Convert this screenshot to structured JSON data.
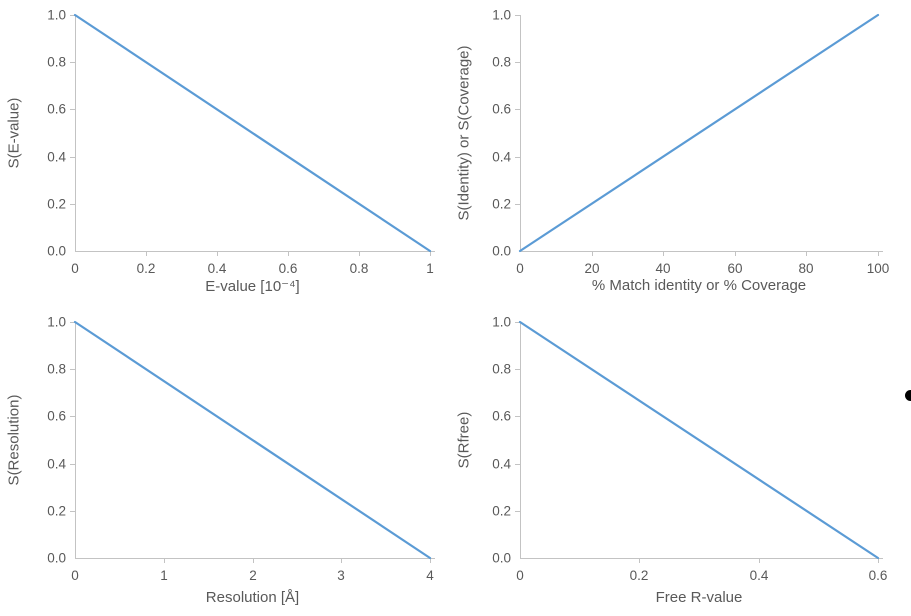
{
  "colors": {
    "background": "#FFFFFF",
    "series_blue": "#5B9BD5",
    "axis_line": "#C3C3C3",
    "tick_text": "#595959",
    "title_text": "#595959"
  },
  "stray_mark": {
    "shape": "partial-bullet-dot-right-edge",
    "color": "#000000"
  },
  "chart_data": [
    {
      "type": "line",
      "title": "",
      "xlabel": "E-value [10⁻⁴]",
      "ylabel": "S(E-value)",
      "x": [
        0,
        1
      ],
      "y": [
        1,
        0
      ],
      "xlim": [
        0,
        1
      ],
      "ylim": [
        0,
        1
      ],
      "xticks": [
        0,
        0.2,
        0.4,
        0.6,
        0.8,
        1
      ],
      "xtick_labels": [
        "0",
        "0.2",
        "0.4",
        "0.6",
        "0.8",
        "1"
      ],
      "yticks": [
        0,
        0.2,
        0.4,
        0.6,
        0.8,
        1
      ],
      "ytick_labels": [
        "0.0",
        "0.2",
        "0.4",
        "0.6",
        "0.8",
        "1.0"
      ],
      "grid": false,
      "legend": null,
      "line_color": "#5B9BD5"
    },
    {
      "type": "line",
      "title": "",
      "xlabel": "% Match identity or % Coverage",
      "ylabel": "S(Identity) or S(Coverage)",
      "x": [
        0,
        100
      ],
      "y": [
        0,
        1
      ],
      "xlim": [
        0,
        100
      ],
      "ylim": [
        0,
        1
      ],
      "xticks": [
        0,
        20,
        40,
        60,
        80,
        100
      ],
      "xtick_labels": [
        "0",
        "20",
        "40",
        "60",
        "80",
        "100"
      ],
      "yticks": [
        0,
        0.2,
        0.4,
        0.6,
        0.8,
        1
      ],
      "ytick_labels": [
        "0.0",
        "0.2",
        "0.4",
        "0.6",
        "0.8",
        "1.0"
      ],
      "grid": false,
      "legend": null,
      "line_color": "#5B9BD5"
    },
    {
      "type": "line",
      "title": "",
      "xlabel": "Resolution [Å]",
      "ylabel": "S(Resolution)",
      "x": [
        0,
        4
      ],
      "y": [
        1,
        0
      ],
      "xlim": [
        0,
        4
      ],
      "ylim": [
        0,
        1
      ],
      "xticks": [
        0,
        1,
        2,
        3,
        4
      ],
      "xtick_labels": [
        "0",
        "1",
        "2",
        "3",
        "4"
      ],
      "yticks": [
        0,
        0.2,
        0.4,
        0.6,
        0.8,
        1
      ],
      "ytick_labels": [
        "0.0",
        "0.2",
        "0.4",
        "0.6",
        "0.8",
        "1.0"
      ],
      "grid": false,
      "legend": null,
      "line_color": "#5B9BD5"
    },
    {
      "type": "line",
      "title": "",
      "xlabel": "Free R-value",
      "ylabel": "S(Rfree)",
      "x": [
        0,
        0.6
      ],
      "y": [
        1,
        0
      ],
      "xlim": [
        0,
        0.6
      ],
      "ylim": [
        0,
        1
      ],
      "xticks": [
        0,
        0.2,
        0.4,
        0.6
      ],
      "xtick_labels": [
        "0",
        "0.2",
        "0.4",
        "0.6"
      ],
      "yticks": [
        0,
        0.2,
        0.4,
        0.6,
        0.8,
        1
      ],
      "ytick_labels": [
        "0.0",
        "0.2",
        "0.4",
        "0.6",
        "0.8",
        "1.0"
      ],
      "grid": false,
      "legend": null,
      "line_color": "#5B9BD5"
    }
  ]
}
